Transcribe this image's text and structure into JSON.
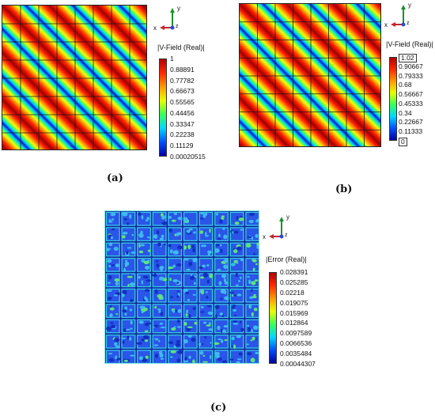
{
  "panels": [
    {
      "id": "a",
      "caption": "(a)",
      "legend_title": "|V-Field (Real)|",
      "legend_ticks": [
        "1",
        "0.88891",
        "0.77782",
        "0.66673",
        "0.55565",
        "0.44456",
        "0.33347",
        "0.22238",
        "0.11129",
        "0.00020515"
      ],
      "colormap": "rainbow",
      "axes": {
        "y": "y",
        "x": "x",
        "z": "z"
      }
    },
    {
      "id": "b",
      "caption": "(b)",
      "legend_title": "|V-Field (Real)|",
      "legend_ticks": [
        "1.02",
        "0.90667",
        "0.79333",
        "0.68",
        "0.56667",
        "0.45333",
        "0.34",
        "0.22667",
        "0.11333",
        "0"
      ],
      "colormap": "rainbow",
      "axes": {
        "y": "y",
        "x": "x",
        "z": "z"
      }
    },
    {
      "id": "c",
      "caption": "(c)",
      "legend_title": "|Error (Real)|",
      "legend_ticks": [
        "0.028391",
        "0.025285",
        "0.02218",
        "0.019075",
        "0.015969",
        "0.012864",
        "0.0097589",
        "0.0066536",
        "0.0035484",
        "0.00044307"
      ],
      "colormap": "rainbow",
      "axes": {
        "y": "y",
        "x": "x",
        "z": "z"
      }
    }
  ]
}
